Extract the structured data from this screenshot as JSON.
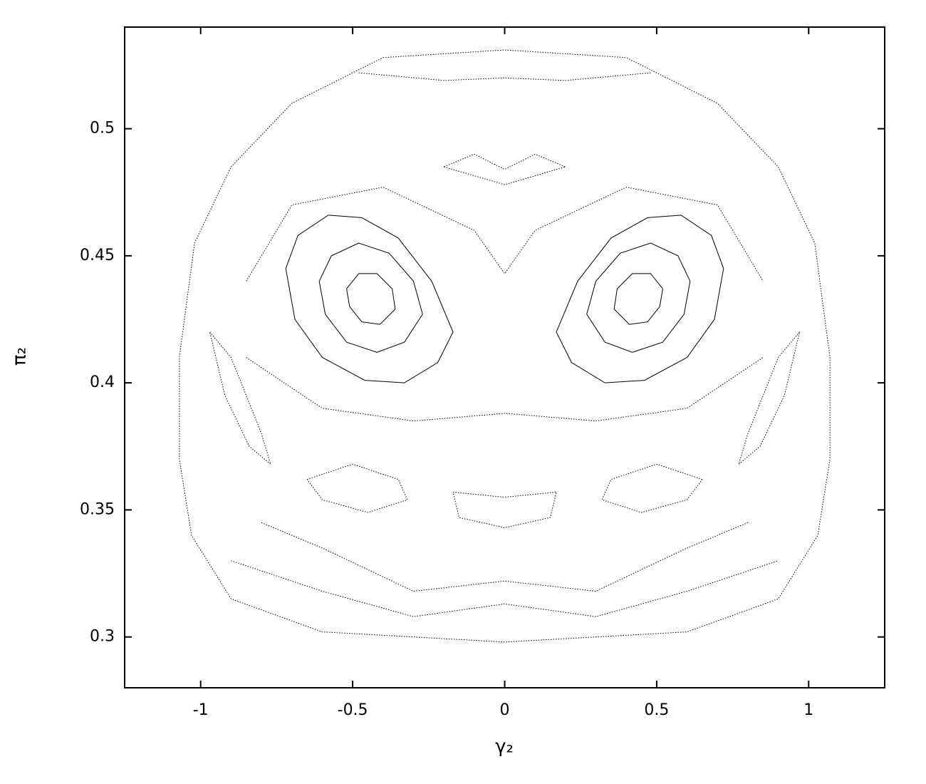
{
  "chart_data": {
    "type": "line",
    "x_label": "γ₂",
    "y_label": "π₂",
    "color": "#000000",
    "xlim": [
      -1.25,
      1.25
    ],
    "xticks": [
      -1,
      -0.5,
      0,
      0.5,
      1
    ],
    "ylim": [
      0.28,
      0.54
    ],
    "yticks": [
      0.3,
      0.35,
      0.4,
      0.45,
      0.5
    ],
    "series": [
      {
        "x": [
          -0.72,
          -0.68,
          -0.58,
          -0.47,
          -0.35,
          -0.24,
          -0.17,
          -0.22,
          -0.33,
          -0.46,
          -0.6,
          -0.69,
          -0.72
        ],
        "values": [
          0.445,
          0.458,
          0.466,
          0.465,
          0.457,
          0.44,
          0.42,
          0.408,
          0.4,
          0.401,
          0.41,
          0.425,
          0.445
        ]
      },
      {
        "x": [
          -0.61,
          -0.57,
          -0.48,
          -0.38,
          -0.3,
          -0.27,
          -0.33,
          -0.42,
          -0.52,
          -0.59,
          -0.61
        ],
        "values": [
          0.44,
          0.45,
          0.455,
          0.451,
          0.44,
          0.427,
          0.416,
          0.412,
          0.416,
          0.427,
          0.44
        ]
      },
      {
        "x": [
          -0.52,
          -0.48,
          -0.42,
          -0.37,
          -0.36,
          -0.41,
          -0.47,
          -0.51,
          -0.52
        ],
        "values": [
          0.437,
          0.443,
          0.443,
          0.437,
          0.429,
          0.423,
          0.424,
          0.43,
          0.437
        ]
      },
      {
        "x": [
          0.72,
          0.68,
          0.58,
          0.47,
          0.35,
          0.24,
          0.17,
          0.22,
          0.33,
          0.46,
          0.6,
          0.69,
          0.72
        ],
        "values": [
          0.445,
          0.458,
          0.466,
          0.465,
          0.457,
          0.44,
          0.42,
          0.408,
          0.4,
          0.401,
          0.41,
          0.425,
          0.445
        ]
      },
      {
        "x": [
          0.61,
          0.57,
          0.48,
          0.38,
          0.3,
          0.27,
          0.33,
          0.42,
          0.52,
          0.59,
          0.61
        ],
        "values": [
          0.44,
          0.45,
          0.455,
          0.451,
          0.44,
          0.427,
          0.416,
          0.412,
          0.416,
          0.427,
          0.44
        ]
      },
      {
        "x": [
          0.52,
          0.48,
          0.42,
          0.37,
          0.36,
          0.41,
          0.47,
          0.51,
          0.52
        ],
        "values": [
          0.437,
          0.443,
          0.443,
          0.437,
          0.429,
          0.423,
          0.424,
          0.43,
          0.437
        ]
      },
      {
        "x": [
          -0.4,
          0,
          0.4,
          0.7,
          0.9,
          1.02,
          1.07,
          1.07,
          1.03,
          0.9,
          0.6,
          0,
          -0.6,
          -0.9,
          -1.03,
          -1.07,
          -1.07,
          -1.02,
          -0.9,
          -0.7,
          -0.4
        ],
        "values": [
          0.528,
          0.531,
          0.528,
          0.51,
          0.485,
          0.455,
          0.41,
          0.37,
          0.34,
          0.315,
          0.302,
          0.298,
          0.302,
          0.315,
          0.34,
          0.37,
          0.41,
          0.455,
          0.485,
          0.51,
          0.528
        ]
      },
      {
        "x": [
          -0.48,
          -0.2,
          0,
          0.2,
          0.48
        ],
        "values": [
          0.522,
          0.519,
          0.52,
          0.519,
          0.522
        ]
      },
      {
        "x": [
          -0.8,
          -0.6,
          -0.3,
          0,
          0.3,
          0.6,
          0.8
        ],
        "values": [
          0.345,
          0.335,
          0.318,
          0.322,
          0.318,
          0.335,
          0.345
        ]
      },
      {
        "x": [
          -0.9,
          -0.6,
          -0.3,
          0,
          0.3,
          0.6,
          0.9
        ],
        "values": [
          0.33,
          0.318,
          0.308,
          0.313,
          0.308,
          0.318,
          0.33
        ]
      },
      {
        "x": [
          -0.85,
          -0.7,
          -0.4,
          -0.1,
          0,
          0.1,
          0.4,
          0.7,
          0.85
        ],
        "values": [
          0.44,
          0.47,
          0.477,
          0.46,
          0.443,
          0.46,
          0.477,
          0.47,
          0.44
        ]
      },
      {
        "x": [
          -0.85,
          -0.6,
          -0.3,
          0,
          0.3,
          0.6,
          0.85
        ],
        "values": [
          0.41,
          0.39,
          0.385,
          0.388,
          0.385,
          0.39,
          0.41
        ]
      },
      {
        "x": [
          -0.2,
          0,
          0.2,
          0.1,
          0,
          -0.1,
          -0.2
        ],
        "values": [
          0.485,
          0.478,
          0.485,
          0.49,
          0.484,
          0.49,
          0.485
        ]
      },
      {
        "x": [
          -0.65,
          -0.5,
          -0.35,
          -0.32,
          -0.45,
          -0.6,
          -0.65
        ],
        "values": [
          0.362,
          0.368,
          0.362,
          0.354,
          0.349,
          0.354,
          0.362
        ]
      },
      {
        "x": [
          -0.17,
          0,
          0.17,
          0.15,
          0,
          -0.15,
          -0.17
        ],
        "values": [
          0.357,
          0.355,
          0.357,
          0.347,
          0.343,
          0.347,
          0.357
        ]
      },
      {
        "x": [
          0.65,
          0.5,
          0.35,
          0.32,
          0.45,
          0.6,
          0.65
        ],
        "values": [
          0.362,
          0.368,
          0.362,
          0.354,
          0.349,
          0.354,
          0.362
        ]
      },
      {
        "x": [
          -0.97,
          -0.9,
          -0.8,
          -0.77,
          -0.84,
          -0.92,
          -0.97
        ],
        "values": [
          0.42,
          0.41,
          0.38,
          0.368,
          0.375,
          0.395,
          0.42
        ]
      },
      {
        "x": [
          0.97,
          0.9,
          0.8,
          0.77,
          0.84,
          0.92,
          0.97
        ],
        "values": [
          0.42,
          0.41,
          0.38,
          0.368,
          0.375,
          0.395,
          0.42
        ]
      }
    ]
  }
}
